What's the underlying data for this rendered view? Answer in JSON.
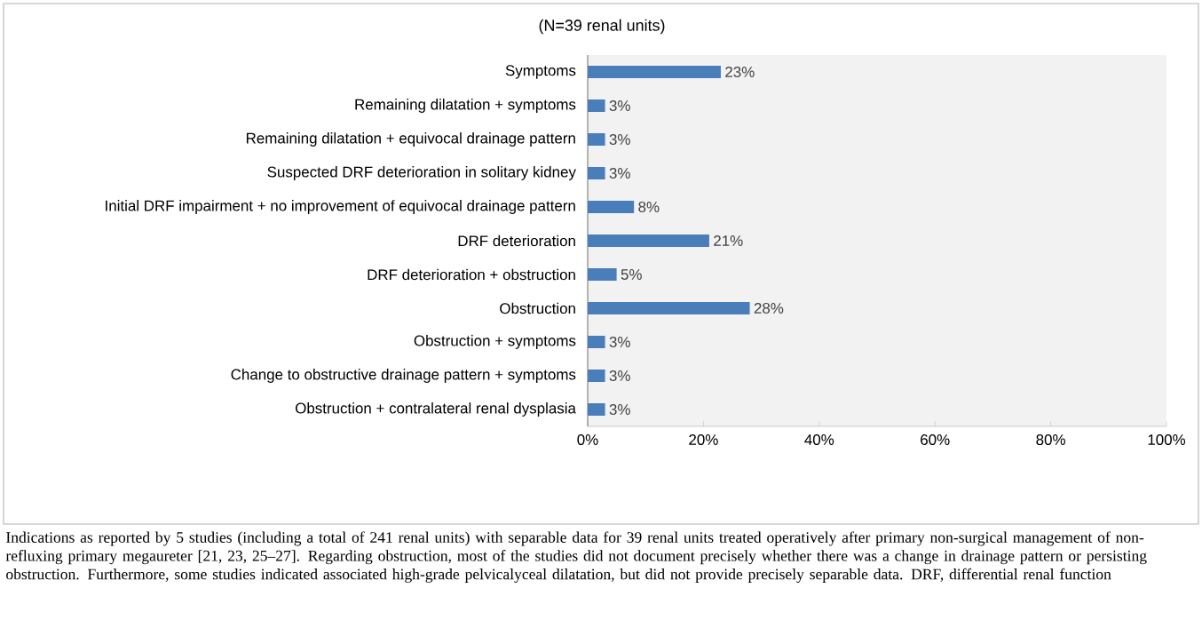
{
  "chart_data": {
    "type": "bar",
    "orientation": "horizontal",
    "title": "(N=39 renal units)",
    "categories": [
      "Symptoms",
      "Remaining dilatation + symptoms",
      "Remaining dilatation + equivocal drainage pattern",
      "Suspected DRF deterioration in solitary kidney",
      "Initial DRF impairment  + no improvement of equivocal drainage pattern",
      "DRF deterioration",
      "DRF deterioration + obstruction",
      "Obstruction",
      "Obstruction + symptoms",
      "Change to obstructive drainage pattern + symptoms",
      "Obstruction + contralateral renal dysplasia"
    ],
    "values": [
      23,
      3,
      3,
      3,
      8,
      21,
      5,
      28,
      3,
      3,
      3
    ],
    "value_labels": [
      "23%",
      "3%",
      "3%",
      "3%",
      "8%",
      "21%",
      "5%",
      "28%",
      "3%",
      "3%",
      "3%"
    ],
    "color": "#4a7ebb",
    "xlim": [
      0,
      100
    ],
    "xticks": [
      {
        "value": 0,
        "label": "0%"
      },
      {
        "value": 20,
        "label": "20%"
      },
      {
        "value": 40,
        "label": "40%"
      },
      {
        "value": 60,
        "label": "60%"
      },
      {
        "value": 80,
        "label": "80%"
      },
      {
        "value": 100,
        "label": "100%"
      }
    ],
    "grid": false,
    "annotations": [
      "Indications as reported by 5 studies (including a total of 241 renal units) with separable data for 39 renal units treated operatively after primary non-surgical management of non-refluxing primary megaureter [21, 23, 25–27]. Regarding obstruction, most of the studies did not document precisely whether there was a change in drainage pattern or persisting obstruction. Furthermore, some studies indicated associated high-grade pelvicalyceal dilatation, but did not provide precisely separable data. DRF, differential renal function"
    ]
  }
}
